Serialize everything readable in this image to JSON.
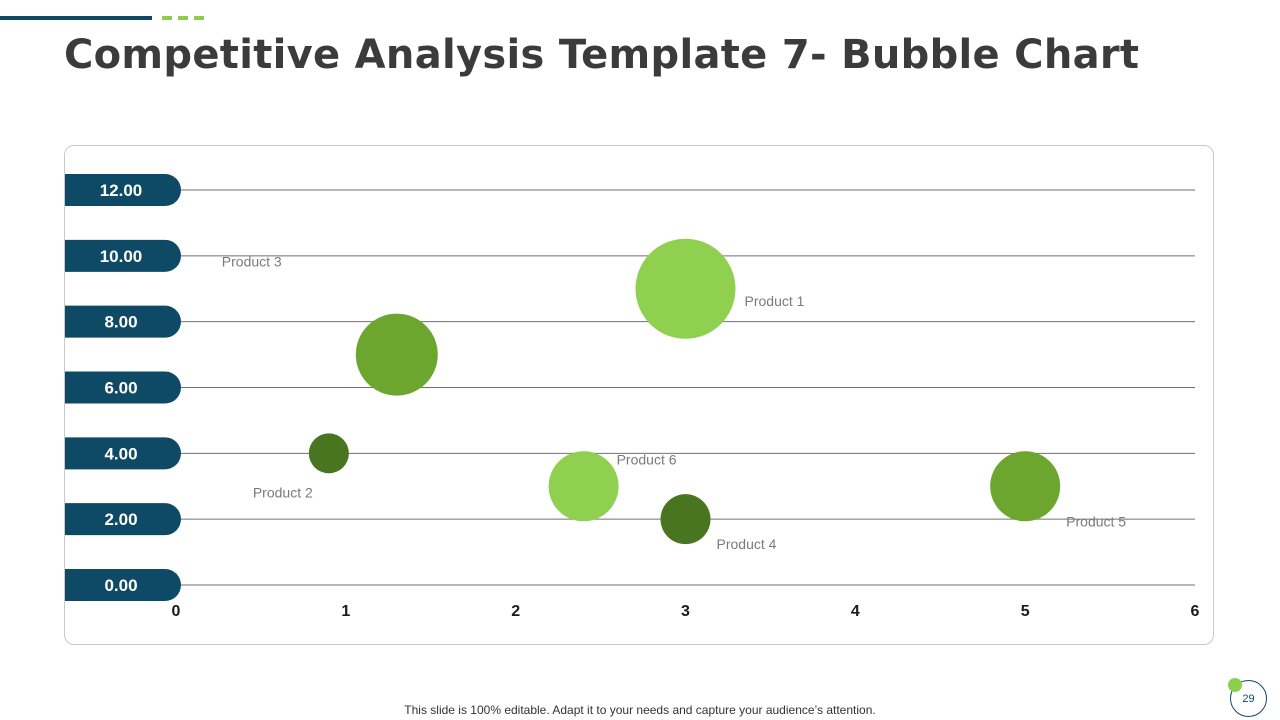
{
  "slide": {
    "title": "Competitive Analysis Template 7- Bubble Chart",
    "footer": "This slide is 100% editable. Adapt it to your needs and capture your audience’s attention.",
    "page_number": "29"
  },
  "colors": {
    "navy": "#0e4a66",
    "light_green": "#8fd050",
    "mid_green": "#6ca62e",
    "dark_green": "#4a7520",
    "gridline": "#707070"
  },
  "chart_data": {
    "type": "bubble",
    "x_ticks": [
      "0",
      "1",
      "2",
      "3",
      "4",
      "5",
      "6"
    ],
    "y_ticks": [
      "0.00",
      "2.00",
      "4.00",
      "6.00",
      "8.00",
      "10.00",
      "12.00"
    ],
    "xlim": [
      0,
      6
    ],
    "ylim": [
      0,
      12
    ],
    "grid": true,
    "points": [
      {
        "label": "Product 1",
        "x": 3.0,
        "y": 9.0,
        "size": 50,
        "color": "#8fd050",
        "label_pos": "right"
      },
      {
        "label": "Product 2",
        "x": 0.9,
        "y": 4.0,
        "size": 20,
        "color": "#4a7520",
        "label_pos": "below-left"
      },
      {
        "label": "Product 3",
        "x": 1.3,
        "y": 7.0,
        "size": 41,
        "color": "#6ca62e",
        "label_pos": "above-left"
      },
      {
        "label": "Product 4",
        "x": 3.0,
        "y": 2.0,
        "size": 25,
        "color": "#4a7520",
        "label_pos": "below-right"
      },
      {
        "label": "Product 5",
        "x": 5.0,
        "y": 3.0,
        "size": 35,
        "color": "#6ca62e",
        "label_pos": "below-right"
      },
      {
        "label": "Product 6",
        "x": 2.4,
        "y": 3.0,
        "size": 35,
        "color": "#8fd050",
        "label_pos": "above-right"
      }
    ]
  }
}
